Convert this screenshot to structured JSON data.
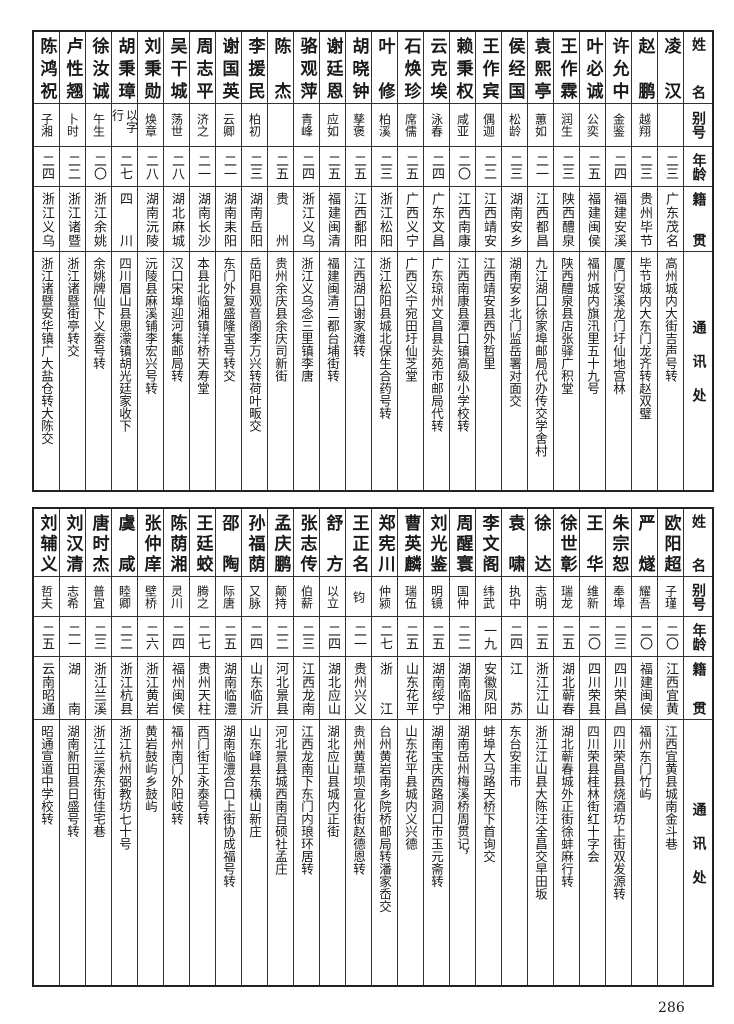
{
  "headers": {
    "name": "姓名",
    "alias": "别号",
    "age": "年龄",
    "native": "籍贯",
    "address": "通讯处"
  },
  "tables": [
    {
      "rows": [
        {
          "name": "凌汉",
          "alias": "",
          "age": "二三",
          "native": "广东茂名",
          "address": "高州城内大街吉声号转"
        },
        {
          "name": "赵鹏",
          "alias": "越翔",
          "age": "二三",
          "native": "贵州毕节",
          "address": "毕节城内大东门龙齐转赵双璧"
        },
        {
          "name": "许允中",
          "alias": "金鉴",
          "age": "二四",
          "native": "福建安溪",
          "address": "厦门安溪龙门圩仙地宫林"
        },
        {
          "name": "叶必诚",
          "alias": "公奕",
          "age": "二五",
          "native": "福建闽侯",
          "address": "福州城内旗汛里五十九号"
        },
        {
          "name": "王作霖",
          "alias": "润生",
          "age": "二三",
          "native": "陕西醴泉",
          "address": "陕西醴泉县店张驿广积堂"
        },
        {
          "name": "袁熙亭",
          "alias": "蕙如",
          "age": "二一",
          "native": "江西都昌",
          "address": "九江湖口徐家埠邮局代办传交学舍村"
        },
        {
          "name": "侯经国",
          "alias": "松龄",
          "age": "二三",
          "native": "湖南安乡",
          "address": "湖南安乡北门监岳署对面交"
        },
        {
          "name": "王作宾",
          "alias": "偶迦",
          "age": "二二",
          "native": "江西靖安",
          "address": "江西靖安县西外哲里"
        },
        {
          "name": "赖秉权",
          "alias": "咸亚",
          "age": "二〇",
          "native": "江西南康",
          "address": "江西南康县潭口镇高级小学校转"
        },
        {
          "name": "云克埃",
          "alias": "泳春",
          "age": "二四",
          "native": "广东文昌",
          "address": "广东琼州文昌县头苑市邮局代转"
        },
        {
          "name": "石焕珍",
          "alias": "席儒",
          "age": "二五",
          "native": "广西义宁",
          "address": "广西义宁宛田圩仙芝堂"
        },
        {
          "name": "叶修",
          "alias": "柏溪",
          "age": "二三",
          "native": "浙江松阳",
          "address": "浙江松阳县城北保生合药号转"
        },
        {
          "name": "胡晓钟",
          "alias": "孳褒",
          "age": "二五",
          "native": "江西鄱阳",
          "address": "江西湖口谢家滩转"
        },
        {
          "name": "谢廷恩",
          "alias": "应如",
          "age": "二五",
          "native": "福建闽清",
          "address": "福建闽清二都台埔街转"
        },
        {
          "name": "骆观萍",
          "alias": "青峰",
          "age": "二四",
          "native": "浙江义乌",
          "address": "浙江义乌念三里镇李唐"
        },
        {
          "name": "陈杰",
          "alias": "",
          "age": "二五",
          "native": "贵州",
          "address": "贵州余庆县余庆司新街"
        },
        {
          "name": "李援民",
          "alias": "柏初",
          "age": "二三",
          "native": "湖南岳阳",
          "address": "岳阳县观音阁李万兴转荷叶畈交"
        },
        {
          "name": "谢国英",
          "alias": "云卿",
          "age": "二一",
          "native": "湖南耒阳",
          "address": "东门外复盛隆宝号转交"
        },
        {
          "name": "周志平",
          "alias": "济之",
          "age": "二一",
          "native": "湖南长沙",
          "address": "本县北临湘镇洋桥天寿堂"
        },
        {
          "name": "吴干城",
          "alias": "荡世",
          "age": "二八",
          "native": "湖北麻城",
          "address": "汉口宋埠迎河集邮局转"
        },
        {
          "name": "刘秉勋",
          "alias": "焕章",
          "age": "二八",
          "native": "湖南沅陵",
          "address": "沅陵县麻溪铺李宏兴号转"
        },
        {
          "name": "胡秉璋",
          "alias": "以字行",
          "age": "二七",
          "native": "四川",
          "address": "四川眉山县思濛镇胡光廷家收下"
        },
        {
          "name": "徐汝诚",
          "alias": "午生",
          "age": "二〇",
          "native": "浙江余姚",
          "address": "余姚牌仙下义泰号转"
        },
        {
          "name": "卢性翘",
          "alias": "卜时",
          "age": "二二",
          "native": "浙江诸暨",
          "address": "浙江诸暨街亭转交"
        },
        {
          "name": "陈鸿祝",
          "alias": "子湘",
          "age": "二四",
          "native": "浙江义乌",
          "address": "浙江诸暨安华镇广大盐仓转大陈交"
        }
      ]
    },
    {
      "rows": [
        {
          "name": "欧阳超",
          "alias": "子瑾",
          "age": "二〇",
          "native": "江西宜黄",
          "address": "江西宜黄县城南金斗巷"
        },
        {
          "name": "严燧",
          "alias": "耀吾",
          "age": "二〇",
          "native": "福建闽侯",
          "address": "福州东门竹屿"
        },
        {
          "name": "朱宗恕",
          "alias": "奉埠",
          "age": "二三",
          "native": "四川荣昌",
          "address": "四川荣昌县烧酒坊上街双发源转"
        },
        {
          "name": "王华",
          "alias": "维新",
          "age": "二〇",
          "native": "四川荣县",
          "address": "四川荣县桂林街红十字会"
        },
        {
          "name": "徐世彰",
          "alias": "瑞龙",
          "age": "二五",
          "native": "湖北蕲春",
          "address": "湖北蕲春城外正街徐蚌麻行转"
        },
        {
          "name": "徐达",
          "alias": "志明",
          "age": "二五",
          "native": "浙江江山",
          "address": "浙江江山县大陈汪全昌交早田坂"
        },
        {
          "name": "袁啸",
          "alias": "执中",
          "age": "二四",
          "native": "江苏",
          "address": "东台安丰市"
        },
        {
          "name": "李文阁",
          "alias": "纬武",
          "age": "一九",
          "native": "安徽凤阳",
          "address": "蚌埠大马路天桥下首询交"
        },
        {
          "name": "周醒寰",
          "alias": "国仲",
          "age": "二二",
          "native": "湖南临湘",
          "address": "湖南岳州梅溪桥周贯记，"
        },
        {
          "name": "刘光鉴",
          "alias": "明镜",
          "age": "二五",
          "native": "湖南绥宁",
          "address": "湖南宝庆西路洞口市玉元斋转"
        },
        {
          "name": "曹英麟",
          "alias": "瑞伍",
          "age": "二五",
          "native": "山东花平",
          "address": "山东花平县城内义兴德"
        },
        {
          "name": "郑宪川",
          "alias": "仲颍",
          "age": "二七",
          "native": "浙江",
          "address": "台州黄岩南乡院桥邮局转潘家岙交"
        },
        {
          "name": "王正名",
          "alias": "钧",
          "age": "二一",
          "native": "贵州兴义",
          "address": "贵州黄草坝宣化街赵德恩转"
        },
        {
          "name": "舒方",
          "alias": "以立",
          "age": "二四",
          "native": "湖北应山",
          "address": "湖北应山县城内正街"
        },
        {
          "name": "张志传",
          "alias": "伯薪",
          "age": "二三",
          "native": "江西龙南",
          "address": "江西龙南下东门内琅环居转"
        },
        {
          "name": "孟庆鹏",
          "alias": "颠持",
          "age": "二二",
          "native": "河北景县",
          "address": "河北景县城西南百硕社孟庄"
        },
        {
          "name": "孙福荫",
          "alias": "又脉",
          "age": "二四",
          "native": "山东临沂",
          "address": "山东峄县东横山新庄"
        },
        {
          "name": "邵陶",
          "alias": "际唐",
          "age": "二五",
          "native": "湖南临澧",
          "address": "湖南临澧合口上街协成福号转"
        },
        {
          "name": "王廷蛟",
          "alias": "腾之",
          "age": "二七",
          "native": "贵州天柱",
          "address": "西门街王永泰号转"
        },
        {
          "name": "陈荫湘",
          "alias": "灵川",
          "age": "二四",
          "native": "福州闽侯",
          "address": "福州南门外阳岐转"
        },
        {
          "name": "张仲庠",
          "alias": "壁桥",
          "age": "二六",
          "native": "浙江黄岩",
          "address": "黄岩鼓屿乡鼓屿"
        },
        {
          "name": "虞咸",
          "alias": "睦卿",
          "age": "二二",
          "native": "浙江杭县",
          "address": "浙江杭州弼教坊七十号"
        },
        {
          "name": "唐时杰",
          "alias": "普宜",
          "age": "二三",
          "native": "浙江兰溪",
          "address": "浙江兰溪东街佳宅巷"
        },
        {
          "name": "刘汉清",
          "alias": "志希",
          "age": "二一",
          "native": "湖南",
          "address": "湖南新田县日盛号转"
        },
        {
          "name": "刘辅义",
          "alias": "哲夫",
          "age": "二五",
          "native": "云南昭通",
          "address": "昭通宣道中学校转"
        }
      ]
    }
  ],
  "page_number": "286"
}
